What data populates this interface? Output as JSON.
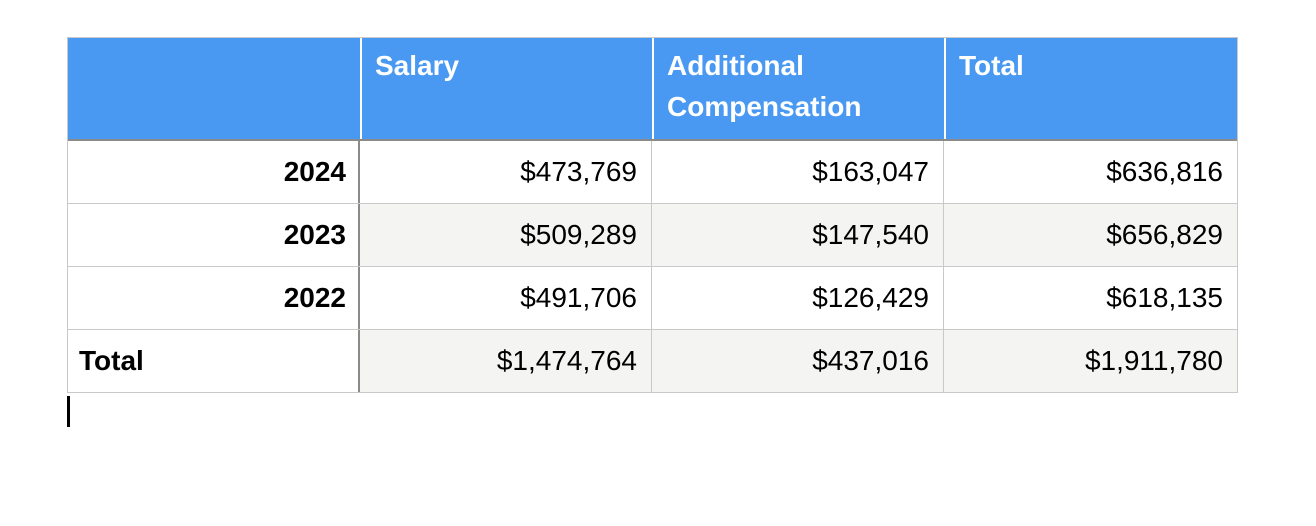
{
  "document": {
    "table": {
      "header": [
        "",
        "Salary",
        "Additional Compensation",
        "Total"
      ],
      "rows": [
        {
          "label": "2024",
          "salary": "$473,769",
          "additional_compensation": "$163,047",
          "total": "$636,816"
        },
        {
          "label": "2023",
          "salary": "$509,289",
          "additional_compensation": "$147,540",
          "total": "$656,829"
        },
        {
          "label": "2022",
          "salary": "$491,706",
          "additional_compensation": "$126,429",
          "total": "$618,135"
        },
        {
          "label": "Total",
          "salary": "$1,474,764",
          "additional_compensation": "$437,016",
          "total": "$1,911,780"
        }
      ]
    },
    "colors": {
      "header_background": "#4999F3",
      "header_text": "#FFFFFF",
      "row_band": "#F4F4F3",
      "border_light": "#C9C9C9",
      "border_dark": "#8A8A8A",
      "body_text": "#000000"
    }
  }
}
